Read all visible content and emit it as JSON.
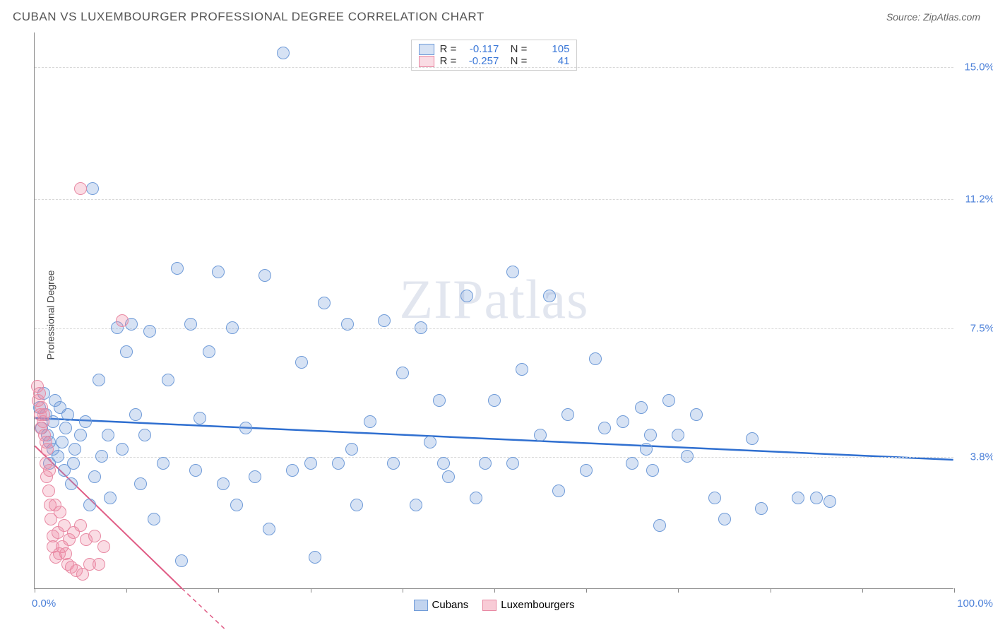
{
  "header": {
    "title": "CUBAN VS LUXEMBOURGER PROFESSIONAL DEGREE CORRELATION CHART",
    "source_label": "Source: ",
    "source_name": "ZipAtlas.com"
  },
  "chart": {
    "type": "scatter",
    "ylabel": "Professional Degree",
    "xlim": [
      0,
      100
    ],
    "ylim": [
      0,
      16
    ],
    "y_gridlines": [
      3.8,
      7.5,
      11.2,
      15.0
    ],
    "y_tick_labels": [
      "3.8%",
      "7.5%",
      "11.2%",
      "15.0%"
    ],
    "x_ticks": [
      0,
      10,
      20,
      30,
      40,
      50,
      60,
      70,
      80,
      90,
      100
    ],
    "x_axis_min_label": "0.0%",
    "x_axis_max_label": "100.0%",
    "background_color": "#ffffff",
    "grid_color": "#d8d8d8",
    "axis_color": "#888888",
    "marker_radius": 9,
    "marker_stroke_width": 1.5,
    "watermark_text": "ZIPatlas",
    "series": [
      {
        "name": "Cubans",
        "fill_color": "rgba(120,160,220,0.30)",
        "stroke_color": "#6f9bd8",
        "trend_color": "#2f6fd0",
        "R": "-0.117",
        "N": "105",
        "trend": {
          "x1": 0,
          "y1": 4.9,
          "x2": 100,
          "y2": 3.7,
          "dash": "none",
          "width": 2.5
        },
        "points": [
          [
            0.5,
            5.2
          ],
          [
            0.8,
            4.6
          ],
          [
            1.0,
            5.6
          ],
          [
            1.2,
            5.0
          ],
          [
            1.4,
            4.4
          ],
          [
            1.6,
            4.2
          ],
          [
            1.6,
            3.6
          ],
          [
            2.0,
            4.8
          ],
          [
            2.0,
            4.0
          ],
          [
            2.2,
            5.4
          ],
          [
            2.5,
            3.8
          ],
          [
            2.8,
            5.2
          ],
          [
            3.0,
            4.2
          ],
          [
            3.2,
            3.4
          ],
          [
            3.4,
            4.6
          ],
          [
            3.6,
            5.0
          ],
          [
            4.0,
            3.0
          ],
          [
            4.2,
            3.6
          ],
          [
            4.4,
            4.0
          ],
          [
            5.0,
            4.4
          ],
          [
            6.3,
            11.5
          ],
          [
            5.5,
            4.8
          ],
          [
            6.0,
            2.4
          ],
          [
            6.5,
            3.2
          ],
          [
            7.0,
            6.0
          ],
          [
            7.3,
            3.8
          ],
          [
            8.0,
            4.4
          ],
          [
            8.2,
            2.6
          ],
          [
            9.0,
            7.5
          ],
          [
            9.5,
            4.0
          ],
          [
            10.0,
            6.8
          ],
          [
            10.5,
            7.6
          ],
          [
            11.0,
            5.0
          ],
          [
            11.5,
            3.0
          ],
          [
            12.0,
            4.4
          ],
          [
            12.5,
            7.4
          ],
          [
            13.0,
            2.0
          ],
          [
            14.0,
            3.6
          ],
          [
            14.5,
            6.0
          ],
          [
            15.5,
            9.2
          ],
          [
            16.0,
            0.8
          ],
          [
            17.0,
            7.6
          ],
          [
            17.5,
            3.4
          ],
          [
            18.0,
            4.9
          ],
          [
            19.0,
            6.8
          ],
          [
            20.0,
            9.1
          ],
          [
            20.5,
            3.0
          ],
          [
            21.5,
            7.5
          ],
          [
            23.0,
            4.6
          ],
          [
            24.0,
            3.2
          ],
          [
            25.0,
            9.0
          ],
          [
            25.5,
            1.7
          ],
          [
            27.0,
            15.4
          ],
          [
            28.0,
            3.4
          ],
          [
            29.0,
            6.5
          ],
          [
            30.0,
            3.6
          ],
          [
            30.5,
            0.9
          ],
          [
            31.5,
            8.2
          ],
          [
            33.0,
            3.6
          ],
          [
            34.0,
            7.6
          ],
          [
            35.0,
            2.4
          ],
          [
            36.5,
            4.8
          ],
          [
            38.0,
            7.7
          ],
          [
            39.0,
            3.6
          ],
          [
            40.0,
            6.2
          ],
          [
            41.5,
            2.4
          ],
          [
            42.0,
            7.5
          ],
          [
            43.0,
            4.2
          ],
          [
            44.0,
            5.4
          ],
          [
            45.0,
            3.2
          ],
          [
            47.0,
            8.4
          ],
          [
            48.0,
            2.6
          ],
          [
            49.0,
            3.6
          ],
          [
            50.0,
            5.4
          ],
          [
            52.0,
            3.6
          ],
          [
            53.0,
            6.3
          ],
          [
            55.0,
            4.4
          ],
          [
            56.0,
            8.4
          ],
          [
            57.0,
            2.8
          ],
          [
            58.0,
            5.0
          ],
          [
            60.0,
            3.4
          ],
          [
            61.0,
            6.6
          ],
          [
            62.0,
            4.6
          ],
          [
            64.0,
            4.8
          ],
          [
            65.0,
            3.6
          ],
          [
            66.0,
            5.2
          ],
          [
            66.5,
            4.0
          ],
          [
            67.0,
            4.4
          ],
          [
            67.2,
            3.4
          ],
          [
            68.0,
            1.8
          ],
          [
            69.0,
            5.4
          ],
          [
            70.0,
            4.4
          ],
          [
            71.0,
            3.8
          ],
          [
            72.0,
            5.0
          ],
          [
            74.0,
            2.6
          ],
          [
            75.0,
            2.0
          ],
          [
            78.0,
            4.3
          ],
          [
            79.0,
            2.3
          ],
          [
            83.0,
            2.6
          ],
          [
            85.0,
            2.6
          ],
          [
            86.5,
            2.5
          ],
          [
            52.0,
            9.1
          ],
          [
            44.5,
            3.6
          ],
          [
            34.5,
            4.0
          ],
          [
            22.0,
            2.4
          ]
        ]
      },
      {
        "name": "Luxembourgers",
        "fill_color": "rgba(240,140,165,0.30)",
        "stroke_color": "#e889a3",
        "trend_color": "#e05c85",
        "R": "-0.257",
        "N": "41",
        "trend": {
          "x1": 0,
          "y1": 4.1,
          "x2": 16,
          "y2": 0.0,
          "dash": "none",
          "width": 2
        },
        "trend_ext": {
          "x1": 16,
          "y1": 0.0,
          "x2": 22,
          "y2": -1.5,
          "dash": "6 5",
          "width": 1.5
        },
        "points": [
          [
            0.3,
            5.8
          ],
          [
            0.4,
            5.4
          ],
          [
            0.5,
            5.6
          ],
          [
            0.6,
            5.0
          ],
          [
            0.7,
            4.6
          ],
          [
            0.8,
            5.2
          ],
          [
            0.9,
            4.8
          ],
          [
            1.0,
            5.0
          ],
          [
            1.1,
            4.4
          ],
          [
            1.2,
            4.2
          ],
          [
            1.2,
            3.6
          ],
          [
            1.3,
            3.2
          ],
          [
            1.4,
            4.0
          ],
          [
            1.5,
            2.8
          ],
          [
            1.6,
            3.4
          ],
          [
            1.7,
            2.4
          ],
          [
            1.8,
            2.0
          ],
          [
            2.0,
            1.5
          ],
          [
            2.0,
            1.2
          ],
          [
            2.2,
            2.4
          ],
          [
            2.3,
            0.9
          ],
          [
            2.5,
            1.6
          ],
          [
            2.7,
            1.0
          ],
          [
            2.8,
            2.2
          ],
          [
            3.0,
            1.2
          ],
          [
            3.2,
            1.8
          ],
          [
            3.4,
            1.0
          ],
          [
            3.6,
            0.7
          ],
          [
            3.8,
            1.4
          ],
          [
            4.0,
            0.6
          ],
          [
            4.2,
            1.6
          ],
          [
            4.5,
            0.5
          ],
          [
            5.0,
            1.8
          ],
          [
            5.2,
            0.4
          ],
          [
            5.6,
            1.4
          ],
          [
            6.0,
            0.7
          ],
          [
            6.5,
            1.5
          ],
          [
            7.0,
            0.7
          ],
          [
            7.5,
            1.2
          ],
          [
            9.5,
            7.7
          ],
          [
            5.0,
            11.5
          ]
        ]
      }
    ],
    "legend_bottom": [
      {
        "label": "Cubans",
        "fill": "rgba(120,160,220,0.45)",
        "stroke": "#6f9bd8"
      },
      {
        "label": "Luxembourgers",
        "fill": "rgba(240,140,165,0.45)",
        "stroke": "#e889a3"
      }
    ]
  }
}
